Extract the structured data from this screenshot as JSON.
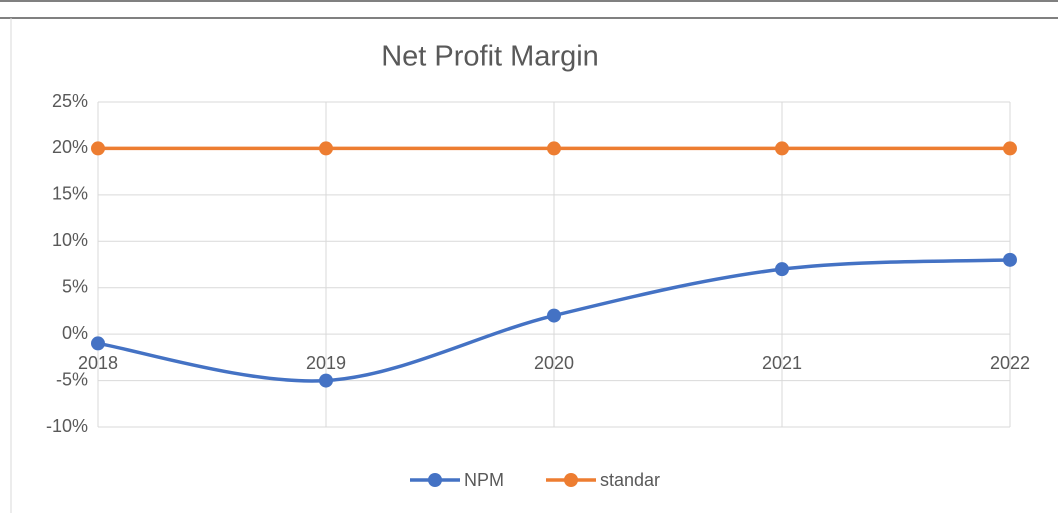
{
  "chart_data": {
    "type": "line",
    "title": "Net Profit Margin",
    "categories": [
      "2018",
      "2019",
      "2020",
      "2021",
      "2022"
    ],
    "series": [
      {
        "name": "NPM",
        "color": "#4472c4",
        "values": [
          -1,
          -5,
          2,
          7,
          8
        ],
        "smooth": true
      },
      {
        "name": "standar",
        "color": "#ed7d31",
        "values": [
          20,
          20,
          20,
          20,
          20
        ],
        "smooth": false
      }
    ],
    "ylim": [
      -10,
      25
    ],
    "yticks": [
      {
        "value": -10,
        "label": "-10%"
      },
      {
        "value": -5,
        "label": "-5%"
      },
      {
        "value": 0,
        "label": "0%"
      },
      {
        "value": 5,
        "label": "5%"
      },
      {
        "value": 10,
        "label": "10%"
      },
      {
        "value": 15,
        "label": "15%"
      },
      {
        "value": 20,
        "label": "20%"
      },
      {
        "value": 25,
        "label": "25%"
      }
    ],
    "grid": true,
    "legend": "bottom"
  }
}
